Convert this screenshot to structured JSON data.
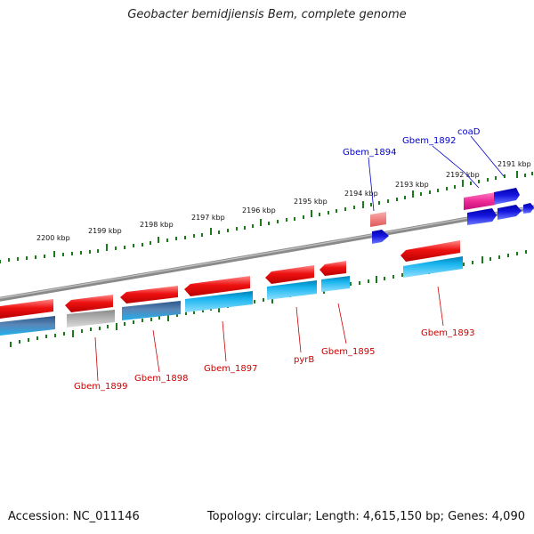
{
  "title": "Geobacter bemidjiensis Bem, complete genome",
  "footer": {
    "accession": "Accession: NC_011146",
    "topology": "Topology: circular; Length: 4,615,150 bp; Genes: 4,090"
  },
  "colors": {
    "forward_gene": "#ee1111",
    "forward_gene_light": "#f08080",
    "cds_cyan": "#18b4ee",
    "steel_blue": "#4a77a8",
    "gray_gene": "#a8a8a8",
    "pink_gene": "#ee2a96",
    "blue_gene": "#1010dd",
    "tick_green": "#1a7a1a",
    "backbone": "#888888",
    "label_red": "#cc0000",
    "label_blue": "#0000cc"
  },
  "scale_ticks": [
    {
      "kbp": 2200,
      "label": "2200 kbp"
    },
    {
      "kbp": 2199,
      "label": "2199 kbp"
    },
    {
      "kbp": 2198,
      "label": "2198 kbp"
    },
    {
      "kbp": 2197,
      "label": "2197 kbp"
    },
    {
      "kbp": 2196,
      "label": "2196 kbp"
    },
    {
      "kbp": 2195,
      "label": "2195 kbp"
    },
    {
      "kbp": 2194,
      "label": "2194 kbp"
    },
    {
      "kbp": 2193,
      "label": "2193 kbp"
    },
    {
      "kbp": 2192,
      "label": "2192 kbp"
    },
    {
      "kbp": 2191,
      "label": "2191 kbp"
    }
  ],
  "genes_outer": [
    {
      "name": "Gbem_1894",
      "color": "blue",
      "label_color": "blue"
    },
    {
      "name": "Gbem_1892",
      "color": "blue",
      "label_color": "blue"
    },
    {
      "name": "coaD",
      "color": "blue",
      "label_color": "blue"
    }
  ],
  "genes_inner": [
    {
      "name": "Gbem_1899",
      "label_color": "red"
    },
    {
      "name": "Gbem_1898",
      "label_color": "red"
    },
    {
      "name": "Gbem_1897",
      "label_color": "red"
    },
    {
      "name": "pyrB",
      "label_color": "red"
    },
    {
      "name": "Gbem_1895",
      "label_color": "red"
    },
    {
      "name": "Gbem_1893",
      "label_color": "red"
    }
  ]
}
